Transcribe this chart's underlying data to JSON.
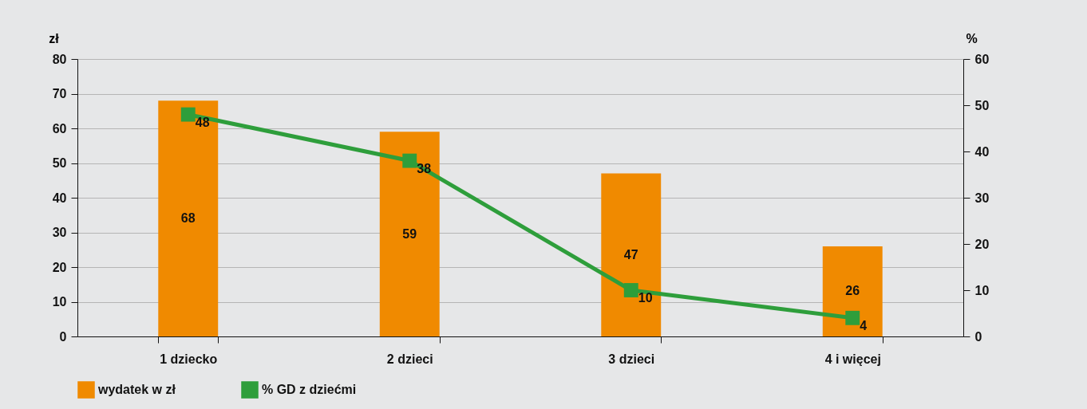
{
  "chart_data": {
    "type": "bar",
    "categories": [
      "1 dziecko",
      "2 dzieci",
      "3 dzieci",
      "4 i więcej"
    ],
    "series": [
      {
        "name": "wydatek w zł",
        "color": "#f08a00",
        "values": [
          68,
          59,
          47,
          26
        ]
      },
      {
        "name": "% GD z dziećmi",
        "type": "line",
        "axis": "y2",
        "color": "#2e9e3b",
        "marker": "square",
        "values": [
          48,
          38,
          10,
          4
        ]
      }
    ],
    "ylabel": "zł",
    "y2label": "%",
    "ylim": [
      0,
      80
    ],
    "yticks": [
      0,
      10,
      20,
      30,
      40,
      50,
      60,
      70,
      80
    ],
    "y2lim": [
      0,
      60
    ],
    "y2ticks": [
      0,
      10,
      20,
      30,
      40,
      50,
      60
    ],
    "grid": "y",
    "legend": "bottom",
    "data_labels": true
  }
}
